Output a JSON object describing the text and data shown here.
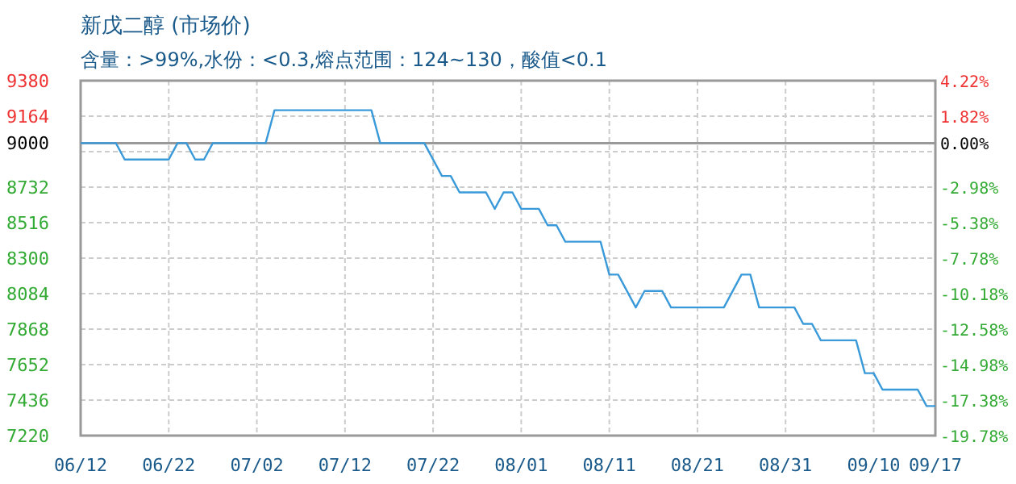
{
  "chart_data": {
    "type": "line",
    "title": "新戊二醇 (市场价)",
    "subtitle": "含量：>99%,水份：<0.3,熔点范围：124~130，酸值<0.1",
    "x": [
      "--06-12",
      "--06-16",
      "--06-17",
      "--06-22",
      "--06-23",
      "--06-24",
      "--06-25",
      "--06-26",
      "--06-27",
      "--07-03",
      "--07-04",
      "--07-15",
      "--07-16",
      "--07-21",
      "--07-23",
      "--07-24",
      "--07-25",
      "--07-28",
      "--07-29",
      "--07-30",
      "--07-31",
      "--08-01",
      "--08-03",
      "--08-04",
      "--08-05",
      "--08-06",
      "--08-10",
      "--08-11",
      "--08-12",
      "--08-14",
      "--08-15",
      "--08-17",
      "--08-18",
      "--08-24",
      "--08-26",
      "--08-27",
      "--08-28",
      "--09-01",
      "--09-02",
      "--09-03",
      "--09-04",
      "--09-08",
      "--09-09",
      "--09-10",
      "--09-11",
      "--09-15",
      "--09-16",
      "--09-17"
    ],
    "series": [
      {
        "color": "#3a9ad9",
        "values": [
          9000,
          9000,
          8900,
          8900,
          9000,
          9000,
          8900,
          8900,
          9000,
          9000,
          9200,
          9200,
          9000,
          9000,
          8800,
          8800,
          8700,
          8700,
          8600,
          8700,
          8700,
          8600,
          8600,
          8500,
          8500,
          8400,
          8400,
          8200,
          8200,
          8000,
          8100,
          8100,
          8000,
          8000,
          8200,
          8200,
          8000,
          8000,
          7900,
          7900,
          7800,
          7800,
          7600,
          7600,
          7500,
          7500,
          7400,
          7400
        ]
      }
    ],
    "xlim": [
      "--06-12",
      "--09-17"
    ],
    "xticks": [
      {
        "value": "--06-12",
        "label": "06/12"
      },
      {
        "value": "--06-22",
        "label": "06/22"
      },
      {
        "value": "--07-02",
        "label": "07/02"
      },
      {
        "value": "--07-12",
        "label": "07/12"
      },
      {
        "value": "--07-22",
        "label": "07/22"
      },
      {
        "value": "--08-01",
        "label": "08/01"
      },
      {
        "value": "--08-11",
        "label": "08/11"
      },
      {
        "value": "--08-21",
        "label": "08/21"
      },
      {
        "value": "--08-31",
        "label": "08/31"
      },
      {
        "value": "--09-10",
        "label": "09/10"
      },
      {
        "value": "--09-17",
        "label": "09/17"
      }
    ],
    "ylim": [
      7220,
      9380
    ],
    "yticks": [
      9380,
      9164,
      9000,
      {
        "value": 8948,
        "label": null
      },
      8732,
      8516,
      8300,
      8084,
      7868,
      7652,
      7436,
      7220
    ],
    "y2lim": [
      -19.78,
      4.22
    ],
    "y2ticks": [
      {
        "value": 4.22,
        "label": "4.22%"
      },
      {
        "value": 1.82,
        "label": "1.82%"
      },
      {
        "value": 0,
        "label": "0.00%"
      },
      {
        "value": -2.98,
        "label": "-2.98%"
      },
      {
        "value": -5.38,
        "label": "-5.38%"
      },
      {
        "value": -7.78,
        "label": "-7.78%"
      },
      {
        "value": -10.18,
        "label": "-10.18%"
      },
      {
        "value": -12.58,
        "label": "-12.58%"
      },
      {
        "value": -14.98,
        "label": "-14.98%"
      },
      {
        "value": -17.38,
        "label": "-17.38%"
      },
      {
        "value": -19.78,
        "label": "-19.78%"
      }
    ],
    "ref_lines": [
      {
        "axis": "y",
        "value": 9000,
        "color": "#999999"
      }
    ],
    "grid": true,
    "marker": "none",
    "line_style": "solid"
  }
}
